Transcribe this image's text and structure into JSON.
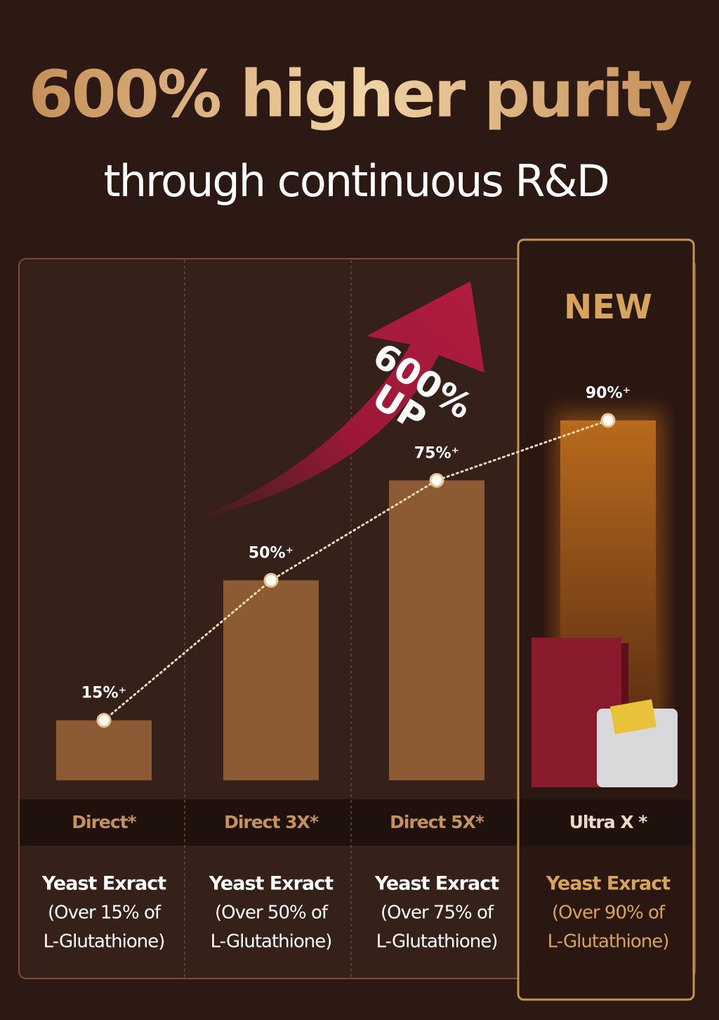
{
  "chart_data": {
    "type": "bar",
    "title": "600% higher purity",
    "subtitle": "through continuous R&D",
    "annotation": [
      "600%",
      "UP"
    ],
    "badge": "NEW",
    "categories": [
      "Direct*",
      "Direct 3X*",
      "Direct 5X*",
      "Ultra X *"
    ],
    "values": [
      15,
      50,
      75,
      90
    ],
    "value_labels": [
      "15%⁺",
      "50%⁺",
      "75%⁺",
      "90%⁺"
    ],
    "descriptions": [
      [
        "Yeast Exract",
        "(Over 15% of",
        "L-Glutathione)"
      ],
      [
        "Yeast Exract",
        "(Over 50% of",
        "L-Glutathione)"
      ],
      [
        "Yeast Exract",
        "(Over 75% of",
        "L-Glutathione)"
      ],
      [
        "Yeast Exract",
        "(Over 90% of",
        "L-Glutathione)"
      ]
    ],
    "color": "#8d5b33"
  }
}
